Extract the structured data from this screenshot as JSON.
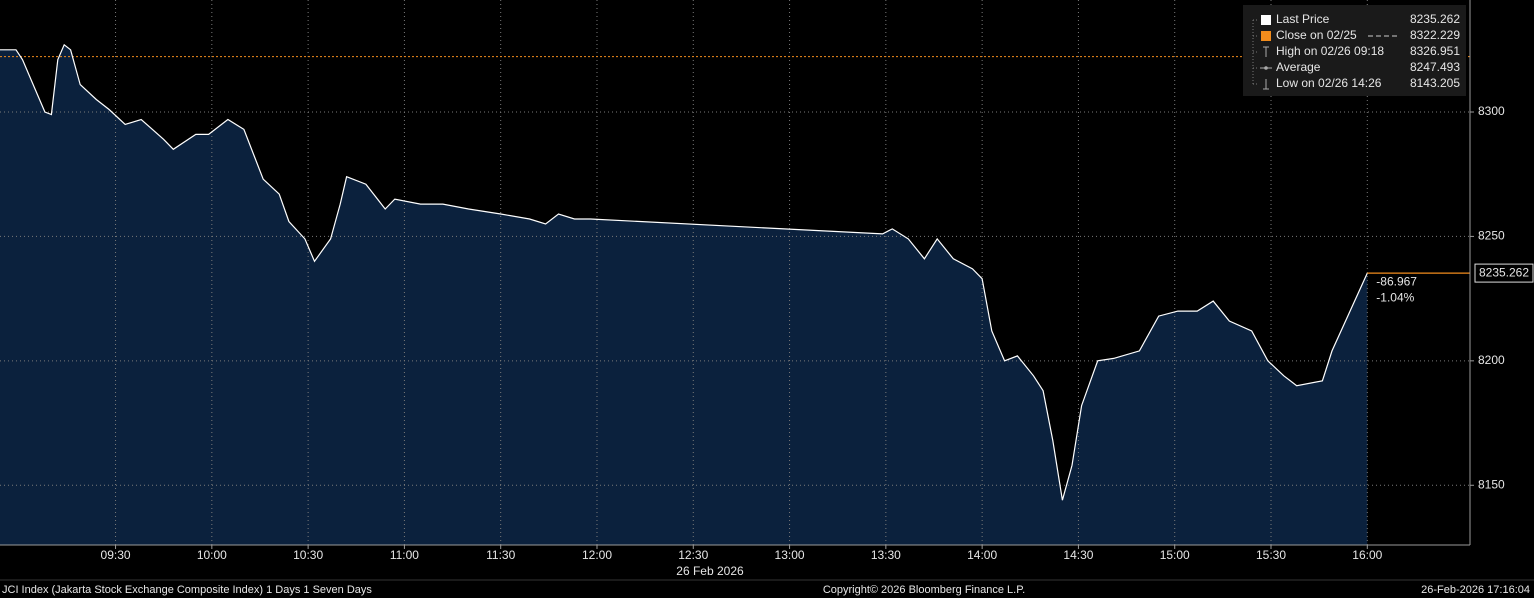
{
  "chart_data": {
    "type": "area",
    "x_label": "26 Feb 2026",
    "xlim": [
      534,
      992
    ],
    "xticks": [
      {
        "value": 570,
        "label": "09:30"
      },
      {
        "value": 600,
        "label": "10:00"
      },
      {
        "value": 630,
        "label": "10:30"
      },
      {
        "value": 660,
        "label": "11:00"
      },
      {
        "value": 690,
        "label": "11:30"
      },
      {
        "value": 720,
        "label": "12:00"
      },
      {
        "value": 750,
        "label": "12:30"
      },
      {
        "value": 780,
        "label": "13:00"
      },
      {
        "value": 810,
        "label": "13:30"
      },
      {
        "value": 840,
        "label": "14:00"
      },
      {
        "value": 870,
        "label": "14:30"
      },
      {
        "value": 900,
        "label": "15:00"
      },
      {
        "value": 930,
        "label": "15:30"
      },
      {
        "value": 960,
        "label": "16:00"
      }
    ],
    "ylim": [
      8126,
      8345
    ],
    "yticks": [
      8150,
      8200,
      8250,
      8300
    ],
    "grid": true,
    "x": [
      534,
      539,
      541,
      545,
      548,
      550,
      552,
      554,
      556,
      559,
      564,
      568,
      573,
      578,
      585,
      588,
      595,
      599,
      605,
      610,
      616,
      621,
      624,
      629,
      632,
      637,
      640,
      642,
      648,
      654,
      657,
      665,
      672,
      680,
      690,
      699,
      704,
      708,
      713,
      718,
      809,
      812,
      817,
      822,
      826,
      831,
      837,
      840,
      843,
      847,
      851,
      856,
      859,
      862,
      865,
      868,
      871,
      876,
      881,
      889,
      895,
      901,
      907,
      912,
      917,
      924,
      929,
      934,
      938,
      946,
      949,
      960
    ],
    "series": [
      {
        "name": "Last Price",
        "color": "#ffffff",
        "fill": "#0b213d",
        "values": [
          8325,
          8325,
          8321,
          8309,
          8300,
          8299,
          8321,
          8327,
          8325,
          8311,
          8305,
          8301,
          8295,
          8297,
          8289,
          8285,
          8291,
          8291,
          8297,
          8293,
          8273,
          8267,
          8256,
          8249,
          8240,
          8249,
          8263,
          8274,
          8271,
          8261,
          8265,
          8263,
          8263,
          8261,
          8259,
          8257,
          8255,
          8259,
          8257,
          8257,
          8251,
          8253,
          8249,
          8241,
          8249,
          8241,
          8237,
          8233,
          8212,
          8200,
          8202,
          8194,
          8188,
          8168,
          8144,
          8158,
          8182,
          8200,
          8201,
          8204,
          8218,
          8220,
          8220,
          8224,
          8216,
          8212,
          8200,
          8194,
          8190,
          8192,
          8204,
          8235.262
        ]
      }
    ],
    "accent_color": "#f28c1c",
    "stats": [
      {
        "label": "Last Price",
        "value": 8235.262
      },
      {
        "label": "Close on 02/25",
        "value": 8322.229
      },
      {
        "label": "High on 02/26 09:18",
        "value": 8326.951
      },
      {
        "label": "Average",
        "value": 8247.493
      },
      {
        "label": "Low on 02/26 14:26",
        "value": 8143.205
      }
    ],
    "annotations": [
      "-86.967",
      "-1.04%"
    ],
    "footer": {
      "left": "JCI Index (Jakarta Stock Exchange Composite Index) 1 Days 1 Seven Days",
      "center": "Copyright© 2026 Bloomberg Finance L.P.",
      "right": "26-Feb-2026 17:16:04"
    }
  }
}
